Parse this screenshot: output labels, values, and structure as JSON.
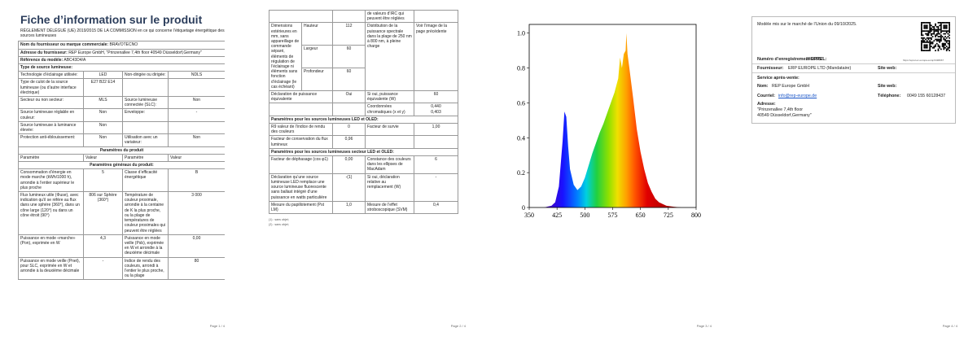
{
  "page1": {
    "title": "Fiche d’information sur le produit",
    "regulation": "RÈGLEMENT DÉLÉGUÉ (UE) 2019/2015 DE LA COMMISSION en ce qui concerne l’étiquetage énergétique des sources lumineuses",
    "supplier": [
      [
        "Nom du fournisseur ou marque commerciale:",
        "BRAVOTECNO"
      ],
      [
        "Adresse du fournisseur:",
        "REP Europe GmbH, \"Prinzenallee 7,4th floor 40549 Düsseldorf,Germany\""
      ],
      [
        "Référence du modèle:",
        "ABC43D4/A"
      ]
    ],
    "light_source_heading": "Type de source lumineuse:",
    "light_source": [
      [
        "Technologie d’éclairage utilisée:",
        "LED",
        "Non-dirigée ou dirigée:",
        "NDLS"
      ],
      [
        "Type de culot de la source lumineuse (ou d’autre interface électrique)",
        "E27 B22 E14",
        null,
        null
      ],
      [
        "Secteur ou non secteur:",
        "MLS",
        "Source lumineuse connectée (SLC):",
        "Non"
      ],
      [
        "Source lumineuse réglable en couleur:",
        "Non",
        "Enveloppe:",
        "-"
      ],
      [
        "Source lumineuse à luminance élevée:",
        "Non",
        null,
        null
      ],
      [
        "Protection anti-éblouissement:",
        "Non",
        "Utilisation avec un variateur:",
        "Non"
      ]
    ],
    "params_heading": "Paramètres du produit",
    "params_header": [
      "Paramètre",
      "Valeur",
      "Paramètre",
      "Valeur"
    ],
    "general_heading": "Paramètres généraux du produit:",
    "general": [
      [
        "Consommation d’énergie en mode marche (kWh/1000 h), arrondie à l’entier supérieur le plus proche",
        "5",
        "Classe d’efficacité énergétique",
        "B"
      ],
      [
        "Flux lumineux utile (Φuse), avec indication qu’il se réfère au flux dans une sphère (360°), dans un cône large (120°) ou dans un cône étroit (90°)",
        "806 sur Sphère (360°)",
        "Température de couleur proximale, arrondie à la centaine de K la plus proche, ou la plage de températures de couleur proximales qui peuvent être réglées",
        "3 000"
      ],
      [
        "Puissance en mode «marche» (Pon), exprimée en W",
        "4,3",
        "Puissance en mode veille (Psb), exprimée en W et arrondie à la deuxième décimale",
        "0,00"
      ],
      [
        "Puissance en mode veille (Pnet), pour SLC, exprimée en W et arrondie à la deuxième décimale",
        "-",
        "Indice de rendu des couleurs, arrondi à l’entier le plus proche, ou la plage",
        "80"
      ]
    ],
    "page_number": "Page 1 / 4"
  },
  "page2": {
    "continuation": "de valeurs d’IRC qui peuvent être réglées",
    "dimensions": {
      "label": "Dimensions extérieures en mm, sans appareillage de commande séparé, éléments de régulation de l’éclairage ni éléments sans fonction d’éclairage (le cas échéant)",
      "parts": [
        [
          "Hauteur",
          "112"
        ],
        [
          "Largeur",
          "60"
        ],
        [
          "Profondeur",
          "60"
        ]
      ],
      "spectral_label": "Distribution de la puissance spectrale dans la plage de 250 nm à 800 nm, à pleine charge",
      "spectral_value": "Voir l’image de la page précédente"
    },
    "rows_a": [
      [
        "Déclaration de puissance équivalente",
        "Oui",
        "Si oui, puissance équivalente (W)",
        "60"
      ],
      [
        null,
        null,
        "Coordonnées chromatiques (x et y)",
        [
          "0,440",
          "0,403"
        ]
      ]
    ],
    "led_heading": "Paramètres pour les sources lumineuses LED et OLED:",
    "rows_b": [
      [
        "R9 valeur de l’indice de rendu des couleurs",
        "0",
        "Facteur de survie",
        "1,00"
      ],
      [
        "Facteur de conservation du flux lumineux",
        "0,96",
        null,
        null
      ]
    ],
    "mains_heading": "Paramètres pour les sources lumineuses secteur LED et OLED:",
    "rows_c": [
      [
        "Facteur de déphasage (cos φ1)",
        "0,00",
        "Constance des couleurs dans les ellipses de MacAdam",
        "6"
      ],
      [
        "Déclaration qu’une source lumineuse LED remplace une source lumineuse fluorescente sans ballast intégré d’une puissance en watts particulière",
        "-(1)",
        "Si oui, déclaration relative au remplacement (W)",
        "-"
      ],
      [
        "Mesure du papillotement (Pst LM)",
        "1,0",
        "Mesure de l’effet stroboscopique (SVM)",
        "0,4"
      ]
    ],
    "footnotes": [
      "(1) : sans objet;",
      "(2) : sans objet;"
    ],
    "page_number": "Page 2 / 4"
  },
  "chart_data": {
    "type": "area",
    "x": [
      380,
      390,
      400,
      410,
      420,
      430,
      440,
      445,
      450,
      455,
      460,
      470,
      480,
      490,
      500,
      510,
      520,
      530,
      540,
      550,
      560,
      570,
      580,
      590,
      595,
      600,
      605,
      610,
      612,
      615,
      620,
      630,
      640,
      650,
      660,
      670,
      680,
      690,
      700,
      720,
      740,
      760,
      780
    ],
    "values": [
      0,
      0,
      0.005,
      0.01,
      0.03,
      0.12,
      0.38,
      0.55,
      0.52,
      0.35,
      0.22,
      0.13,
      0.1,
      0.12,
      0.17,
      0.24,
      0.31,
      0.37,
      0.43,
      0.48,
      0.54,
      0.6,
      0.66,
      0.74,
      0.86,
      0.8,
      0.88,
      0.9,
      1.0,
      0.88,
      0.8,
      0.63,
      0.45,
      0.32,
      0.22,
      0.14,
      0.09,
      0.05,
      0.03,
      0.01,
      0.004,
      0,
      0
    ],
    "xlim": [
      350,
      800
    ],
    "xticks": [
      350,
      425,
      500,
      575,
      650,
      725,
      800
    ],
    "ylim": [
      0,
      1.05
    ],
    "yticks": [
      0,
      0.2,
      0.4,
      0.6,
      0.8,
      {
        "value": 1.0,
        "label": "1.0"
      }
    ]
  },
  "page3": {
    "page_number": "Page 3 / 4"
  },
  "page4": {
    "market": "Modèle mis sur le marché de l’Union du 09/10/2025.",
    "qr_url": "https://eprel.ec.europa.eu/qr/2496667",
    "eprel_label": "Numéro d’enregistrement EPREL:",
    "eprel": "2496667",
    "supplier_label": "Fournisseur:",
    "supplier": "ERP EUROPE LTD (Mandataire)",
    "website_label": "Site web:",
    "service_label": "Service après-vente:",
    "name_label": "Nom:",
    "name": "REP Europe GmbH",
    "service_website_label": "Site web:",
    "email_label": "Courriel:",
    "email": "info@rep-europe.de",
    "phone_label": "Téléphone:",
    "phone": "0049 155 60128437",
    "address_label": "Adresse:",
    "address": [
      "\"Prinzenallee 7,4th floor",
      "40549 Düsseldorf,Germany\""
    ],
    "page_number": "Page 4 / 4"
  }
}
